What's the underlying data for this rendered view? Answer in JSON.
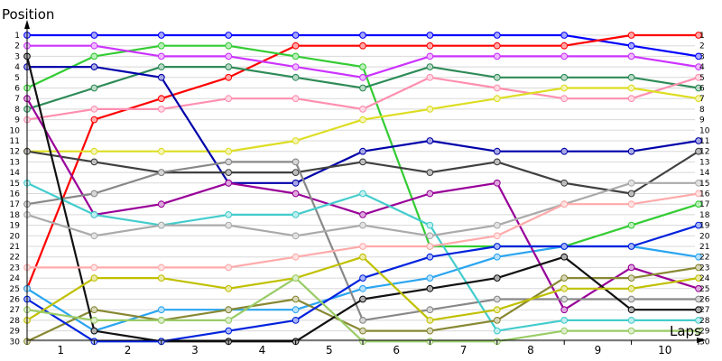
{
  "chart_data": {
    "type": "line",
    "ylabel": "Position",
    "xlabel": "Laps",
    "x": [
      0,
      1,
      2,
      3,
      4,
      5,
      6,
      7,
      8,
      9,
      10
    ],
    "x_ticks": [
      "1",
      "2",
      "3",
      "4",
      "5",
      "6",
      "7",
      "8",
      "9",
      "10"
    ],
    "y_ticks": [
      "1",
      "2",
      "3",
      "4",
      "5",
      "6",
      "7",
      "8",
      "9",
      "10",
      "11",
      "12",
      "13",
      "14",
      "15",
      "16",
      "17",
      "18",
      "19",
      "20",
      "21",
      "22",
      "23",
      "24",
      "25",
      "26",
      "27",
      "28",
      "29",
      "30"
    ],
    "ylim": [
      1,
      30
    ],
    "y_inverted": true,
    "grid": true,
    "legend": "none",
    "series": [
      {
        "color": "#0000ff",
        "values": [
          1,
          1,
          1,
          1,
          1,
          1,
          1,
          1,
          1,
          2,
          3
        ]
      },
      {
        "color": "#ff0000",
        "values": [
          25,
          9,
          7,
          5,
          2,
          2,
          2,
          2,
          2,
          1,
          1
        ]
      },
      {
        "color": "#33cc33",
        "values": [
          6,
          3,
          2,
          2,
          3,
          4,
          21,
          21,
          21,
          19,
          17
        ]
      },
      {
        "color": "#cc33ff",
        "values": [
          2,
          2,
          3,
          3,
          4,
          5,
          3,
          3,
          3,
          3,
          4
        ]
      },
      {
        "color": "#2e8b57",
        "values": [
          8,
          6,
          4,
          4,
          5,
          6,
          4,
          5,
          5,
          5,
          6
        ]
      },
      {
        "color": "#2aa5f0",
        "values": [
          25,
          29,
          27,
          27,
          27,
          25,
          24,
          22,
          21,
          21,
          22
        ]
      },
      {
        "color": "#ff8fb0",
        "values": [
          9,
          8,
          8,
          7,
          7,
          8,
          5,
          6,
          7,
          7,
          5
        ]
      },
      {
        "color": "#dddd22",
        "values": [
          12,
          12,
          12,
          12,
          11,
          9,
          8,
          7,
          6,
          6,
          7
        ]
      },
      {
        "color": "#0000aa",
        "values": [
          4,
          4,
          5,
          15,
          15,
          12,
          11,
          12,
          12,
          12,
          11
        ]
      },
      {
        "color": "#404040",
        "values": [
          12,
          13,
          14,
          14,
          14,
          13,
          14,
          13,
          15,
          16,
          12
        ]
      },
      {
        "color": "#990099",
        "values": [
          7,
          18,
          17,
          15,
          16,
          18,
          16,
          15,
          27,
          23,
          25
        ]
      },
      {
        "color": "#888888",
        "values": [
          17,
          16,
          14,
          13,
          13,
          28,
          27,
          26,
          26,
          26,
          26
        ]
      },
      {
        "color": "#44cccc",
        "values": [
          15,
          18,
          19,
          18,
          18,
          16,
          19,
          29,
          28,
          28,
          28
        ]
      },
      {
        "color": "#888833",
        "values": [
          30,
          27,
          28,
          27,
          26,
          29,
          29,
          28,
          24,
          24,
          23
        ]
      },
      {
        "color": "#111111",
        "values": [
          3,
          29,
          30,
          30,
          30,
          26,
          25,
          24,
          22,
          27,
          27
        ]
      },
      {
        "color": "#0022dd",
        "values": [
          26,
          30,
          30,
          29,
          28,
          24,
          22,
          21,
          21,
          21,
          19
        ]
      },
      {
        "color": "#c0c000",
        "values": [
          28,
          24,
          24,
          25,
          24,
          22,
          28,
          27,
          25,
          25,
          24
        ]
      },
      {
        "color": "#99cc66",
        "values": [
          27,
          28,
          28,
          28,
          24,
          30,
          30,
          30,
          29,
          29,
          29
        ]
      },
      {
        "color": "#aaaaaa",
        "values": [
          18,
          20,
          19,
          19,
          20,
          19,
          20,
          19,
          17,
          15,
          15
        ]
      },
      {
        "color": "#ffaaaa",
        "values": [
          23,
          23,
          23,
          23,
          22,
          21,
          21,
          20,
          17,
          17,
          16
        ]
      }
    ]
  }
}
